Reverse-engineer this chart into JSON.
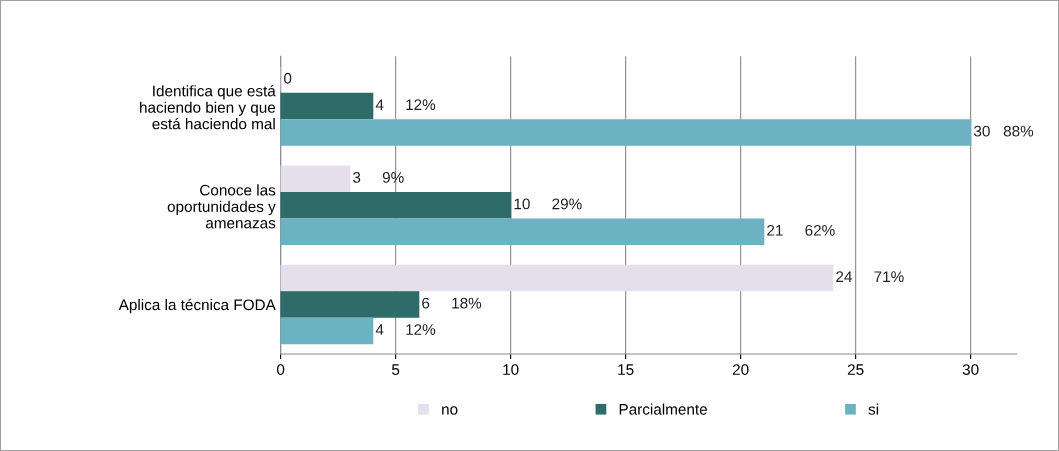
{
  "chart_data": {
    "type": "bar",
    "orientation": "horizontal",
    "categories": [
      "Identifica que está\nhaciendo bien y que\nestá haciendo mal",
      "Conoce las\noportunidades y\namenazas",
      "Aplica la técnica FODA"
    ],
    "series": [
      {
        "name": "no",
        "color": "#e4dfeb",
        "values": [
          0,
          3,
          24
        ],
        "value_labels": [
          "0",
          "3     9%",
          "24     71%"
        ]
      },
      {
        "name": "Parcialmente",
        "color": "#2f6b68",
        "values": [
          4,
          10,
          6
        ],
        "value_labels": [
          "4     12%",
          "10     29%",
          "6     18%"
        ]
      },
      {
        "name": "si",
        "color": "#6cb2c2",
        "values": [
          30,
          21,
          4
        ],
        "value_labels": [
          "30   88%",
          "21     62%",
          "4     12%"
        ]
      }
    ],
    "xlim": [
      0,
      32
    ],
    "xticks": [
      0,
      5,
      10,
      15,
      20,
      25,
      30
    ],
    "grid": "x",
    "legend": "bottom"
  }
}
